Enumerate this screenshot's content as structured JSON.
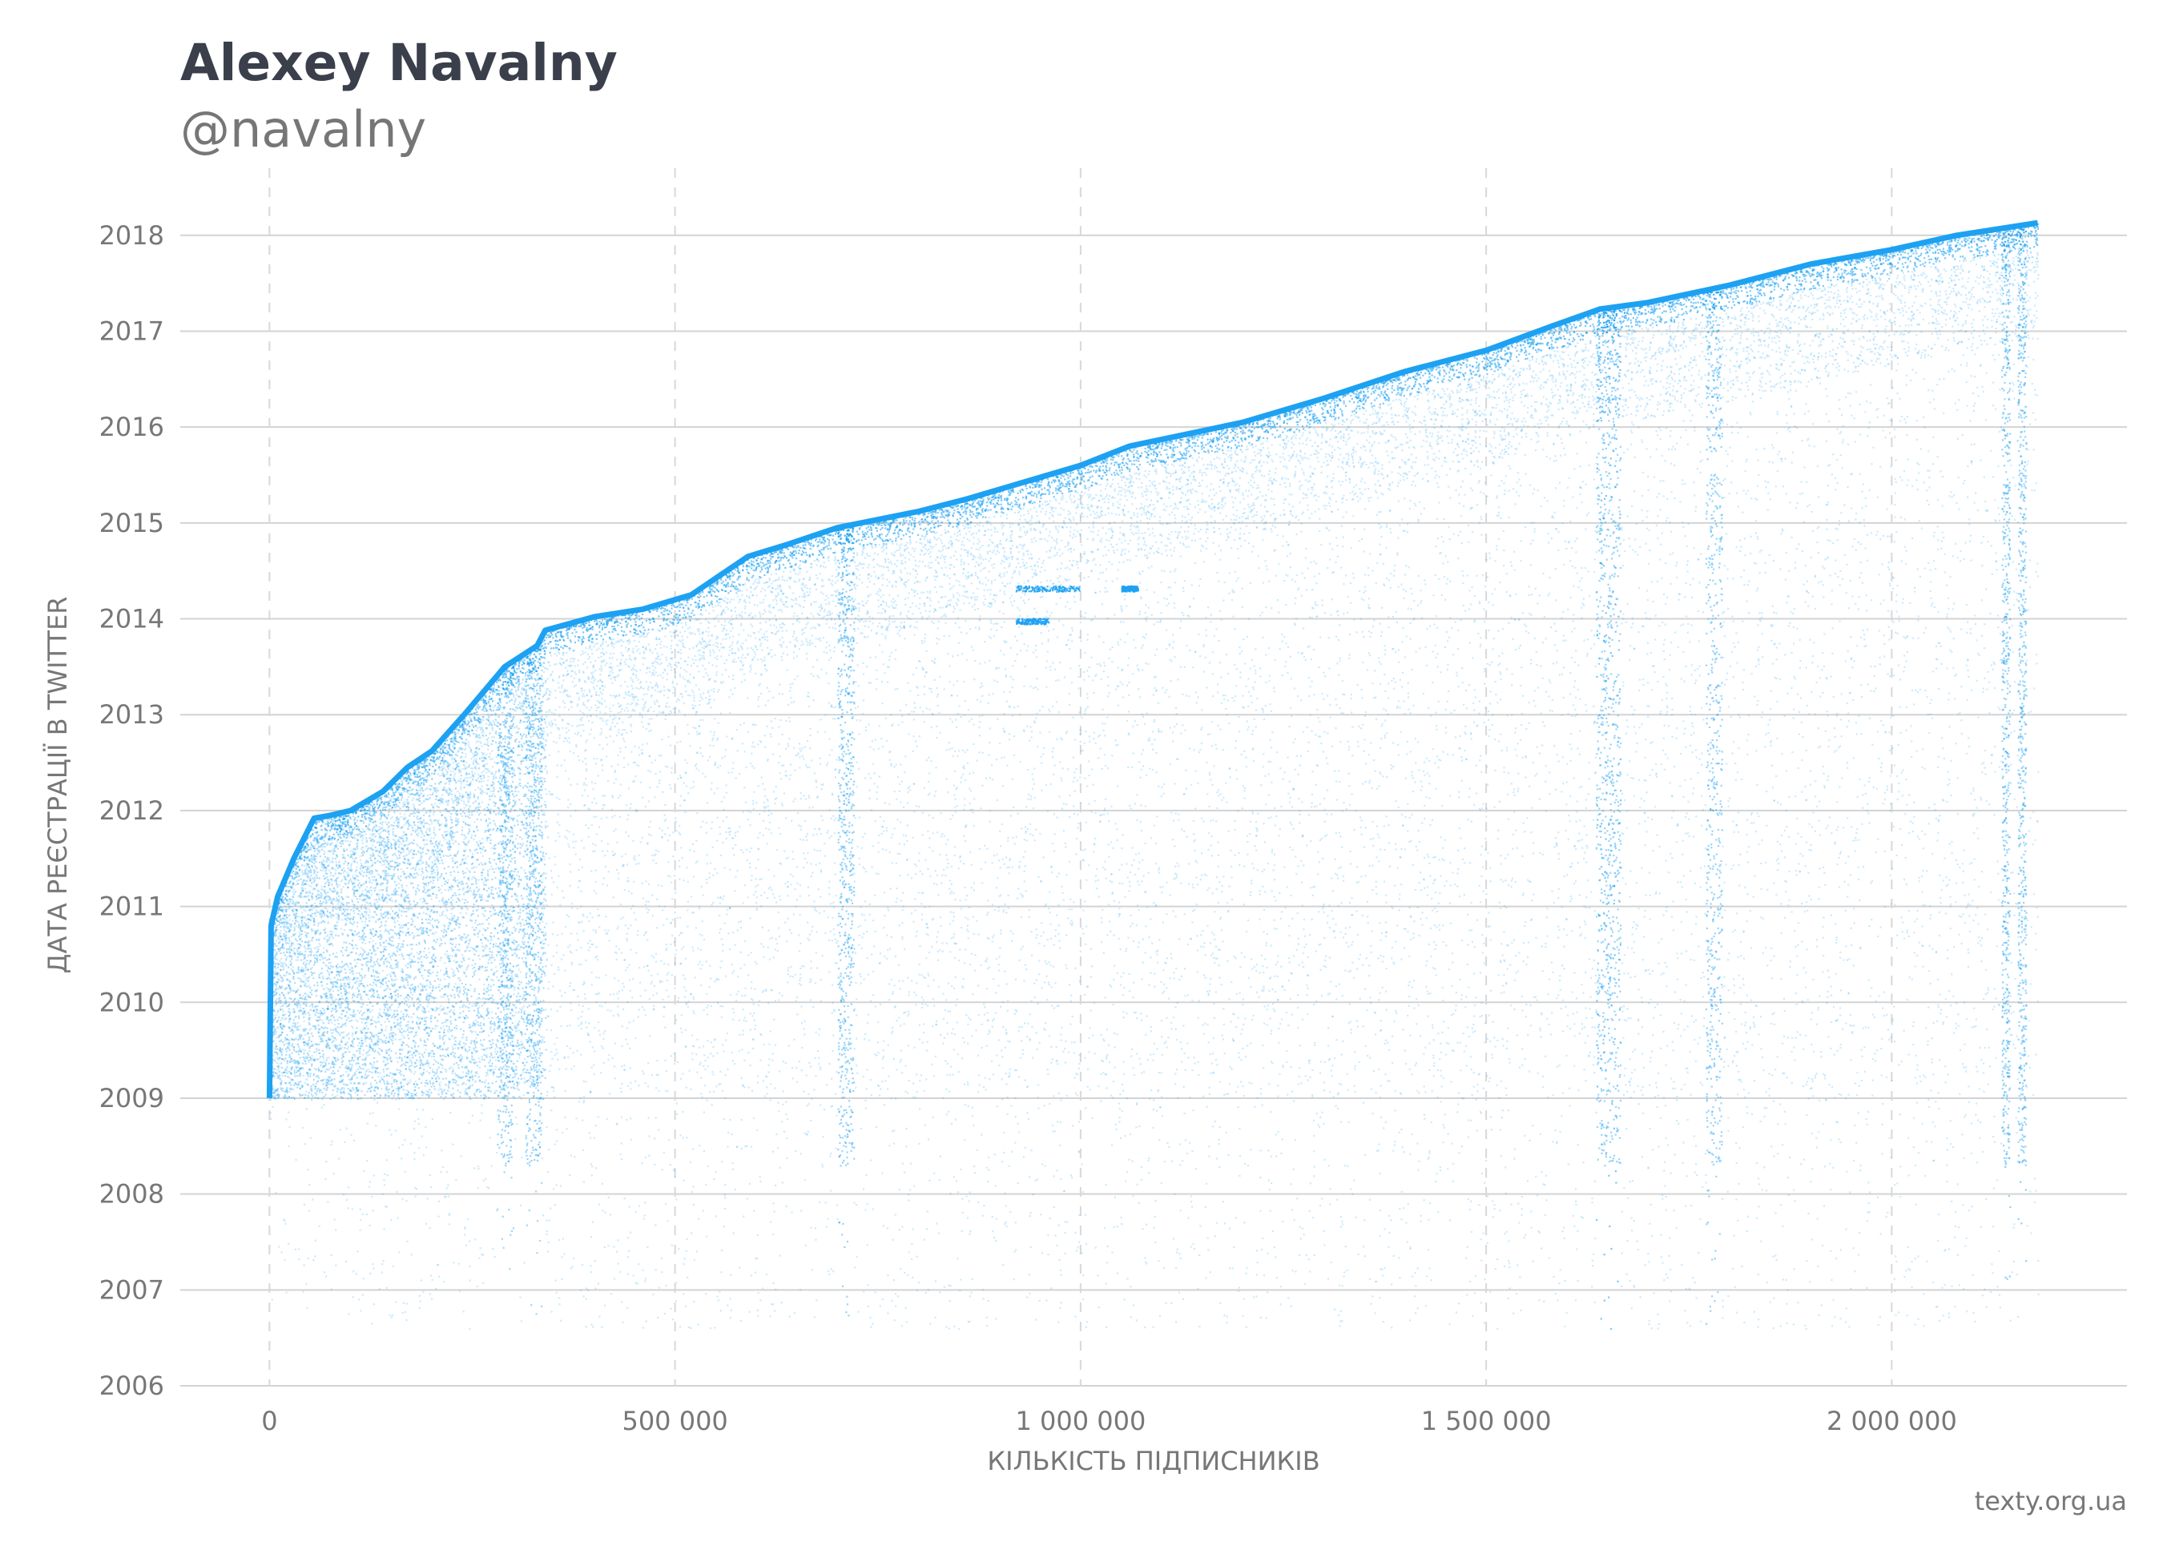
{
  "title": "Alexey Navalny",
  "subtitle": "@navalny",
  "source": "texty.org.ua",
  "chart_data": {
    "type": "scatter",
    "xlabel": "КІЛЬКІСТЬ ПІДПИСНИКІВ",
    "ylabel": "ДАТА РЕЄСТРАЦІЇ В TWITTER",
    "xlim": [
      -110000,
      2290000
    ],
    "ylim": [
      2006,
      2018.7
    ],
    "x_ticks": [
      0,
      500000,
      1000000,
      1500000,
      2000000
    ],
    "x_tick_labels": [
      "0",
      "500 000",
      "1 000 000",
      "1 500 000",
      "2 000 000"
    ],
    "y_ticks": [
      2006,
      2007,
      2008,
      2009,
      2010,
      2011,
      2012,
      2013,
      2014,
      2015,
      2016,
      2017,
      2018
    ],
    "y_tick_labels": [
      "2006",
      "2007",
      "2008",
      "2009",
      "2010",
      "2011",
      "2012",
      "2013",
      "2014",
      "2015",
      "2016",
      "2017",
      "2018"
    ],
    "point_color": "#1da1f2",
    "grid": {
      "horizontal": "solid",
      "vertical": "dashed"
    },
    "upper_envelope": [
      [
        0,
        2009.0
      ],
      [
        2000,
        2010.8
      ],
      [
        10000,
        2011.1
      ],
      [
        30000,
        2011.5
      ],
      [
        55000,
        2011.92
      ],
      [
        75000,
        2011.95
      ],
      [
        100000,
        2012.0
      ],
      [
        140000,
        2012.2
      ],
      [
        170000,
        2012.45
      ],
      [
        200000,
        2012.62
      ],
      [
        240000,
        2013.0
      ],
      [
        290000,
        2013.5
      ],
      [
        330000,
        2013.72
      ],
      [
        340000,
        2013.88
      ],
      [
        370000,
        2013.95
      ],
      [
        400000,
        2014.02
      ],
      [
        460000,
        2014.1
      ],
      [
        520000,
        2014.25
      ],
      [
        560000,
        2014.48
      ],
      [
        590000,
        2014.65
      ],
      [
        640000,
        2014.78
      ],
      [
        700000,
        2014.95
      ],
      [
        800000,
        2015.12
      ],
      [
        860000,
        2015.25
      ],
      [
        1000000,
        2015.6
      ],
      [
        1060000,
        2015.8
      ],
      [
        1200000,
        2016.05
      ],
      [
        1300000,
        2016.3
      ],
      [
        1400000,
        2016.58
      ],
      [
        1500000,
        2016.8
      ],
      [
        1580000,
        2017.05
      ],
      [
        1640000,
        2017.23
      ],
      [
        1700000,
        2017.3
      ],
      [
        1800000,
        2017.48
      ],
      [
        1900000,
        2017.7
      ],
      [
        2000000,
        2017.85
      ],
      [
        2080000,
        2018.0
      ],
      [
        2180000,
        2018.13
      ]
    ],
    "density_bands": [
      {
        "x_range": [
          280000,
          300000
        ],
        "intensity": 0.5
      },
      {
        "x_range": [
          315000,
          335000
        ],
        "intensity": 0.5
      },
      {
        "x_range": [
          700000,
          720000
        ],
        "intensity": 0.6
      },
      {
        "x_range": [
          1635000,
          1665000
        ],
        "intensity": 0.9
      },
      {
        "x_range": [
          1770000,
          1790000
        ],
        "intensity": 0.6
      },
      {
        "x_range": [
          2135000,
          2145000
        ],
        "intensity": 0.7
      },
      {
        "x_range": [
          2155000,
          2165000
        ],
        "intensity": 0.7
      }
    ],
    "clusters": [
      {
        "x_range": [
          920000,
          1000000
        ],
        "y": 2014.32
      },
      {
        "x_range": [
          1050000,
          1070000
        ],
        "y": 2014.32
      },
      {
        "x_range": [
          920000,
          960000
        ],
        "y": 2013.98
      }
    ]
  }
}
